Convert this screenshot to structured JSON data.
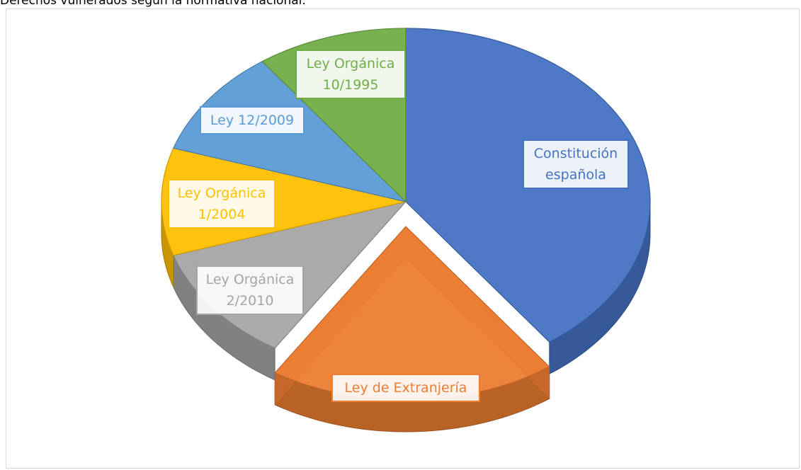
{
  "chart_data": {
    "type": "pie",
    "title": "Derechos vulnerados según la normativa nacional.",
    "categories": [
      "Constitución española",
      "Ley de Extranjería",
      "Ley Orgánica 2/2010",
      "Ley Orgánica 1/2004",
      "Ley 12/2009",
      "Ley Orgánica 10/1995"
    ],
    "values": [
      40,
      19,
      11,
      10,
      10,
      10
    ],
    "colors": [
      "#4472c4",
      "#ed7d31",
      "#a5a5a5",
      "#ffc000",
      "#5b9bd5",
      "#70ad47"
    ]
  }
}
